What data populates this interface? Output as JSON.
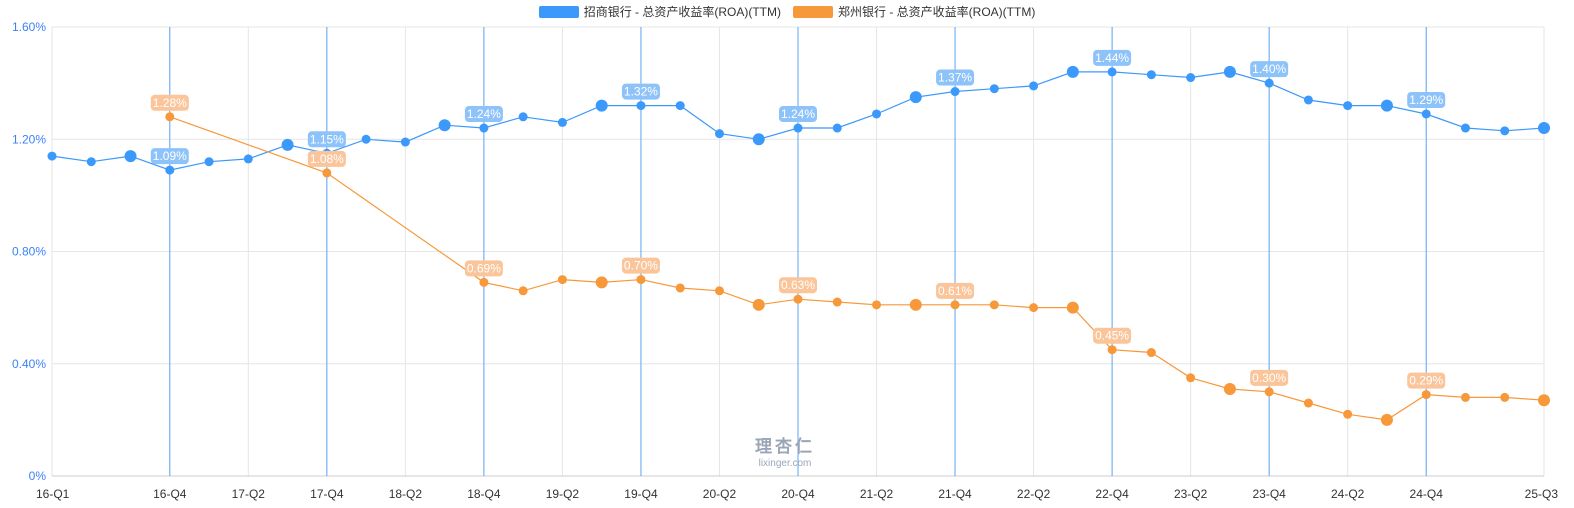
{
  "legend": {
    "series_a": "招商银行 - 总资产收益率(ROA)(TTM)",
    "series_b": "郑州银行 - 总资产收益率(ROA)(TTM)"
  },
  "watermark": {
    "logo": "理杏仁",
    "site": "lixinger.com"
  },
  "colors": {
    "series_a": "#3b99fc",
    "series_b": "#f7983a",
    "axis_text": "#3b82f6",
    "grid": "#e6e6e6"
  },
  "chart_data": {
    "type": "line",
    "title": "",
    "xlabel": "",
    "ylabel": "",
    "ylim": [
      0,
      1.6
    ],
    "y_ticks": [
      0,
      0.4,
      0.8,
      1.2,
      1.6
    ],
    "y_tick_labels": [
      "0%",
      "0.40%",
      "0.80%",
      "1.20%",
      "1.60%"
    ],
    "x_tick_labels": [
      "16-Q1",
      "16-Q4",
      "17-Q2",
      "17-Q4",
      "18-Q2",
      "18-Q4",
      "19-Q2",
      "19-Q4",
      "20-Q2",
      "20-Q4",
      "21-Q2",
      "21-Q4",
      "22-Q2",
      "22-Q4",
      "23-Q2",
      "23-Q4",
      "24-Q2",
      "24-Q4",
      "25-Q3"
    ],
    "x_tick_positions": [
      0,
      3,
      5,
      7,
      9,
      11,
      13,
      15,
      17,
      19,
      21,
      23,
      25,
      27,
      29,
      31,
      33,
      35,
      38
    ],
    "vertical_markers": [
      3,
      7,
      11,
      15,
      19,
      23,
      27,
      31,
      35
    ],
    "series": [
      {
        "name": "招商银行 - 总资产收益率(ROA)(TTM)",
        "x": [
          0,
          1,
          2,
          3,
          4,
          5,
          6,
          7,
          8,
          9,
          10,
          11,
          12,
          13,
          14,
          15,
          16,
          17,
          18,
          19,
          20,
          21,
          22,
          23,
          24,
          25,
          26,
          27,
          28,
          29,
          30,
          31,
          32,
          33,
          34,
          35,
          36,
          37,
          38
        ],
        "values": [
          1.14,
          1.12,
          1.14,
          1.09,
          1.12,
          1.13,
          1.18,
          1.15,
          1.2,
          1.19,
          1.25,
          1.24,
          1.28,
          1.26,
          1.32,
          1.32,
          1.32,
          1.22,
          1.2,
          1.24,
          1.24,
          1.29,
          1.35,
          1.37,
          1.38,
          1.39,
          1.44,
          1.44,
          1.43,
          1.42,
          1.44,
          1.4,
          1.34,
          1.32,
          1.32,
          1.29,
          1.24,
          1.23,
          1.24
        ],
        "large_points": [
          2,
          6,
          10,
          14,
          18,
          22,
          26,
          30,
          34,
          38
        ],
        "labels": [
          {
            "i": 3,
            "text": "1.09%"
          },
          {
            "i": 7,
            "text": "1.15%"
          },
          {
            "i": 11,
            "text": "1.24%"
          },
          {
            "i": 15,
            "text": "1.32%"
          },
          {
            "i": 19,
            "text": "1.24%"
          },
          {
            "i": 23,
            "text": "1.37%"
          },
          {
            "i": 27,
            "text": "1.44%"
          },
          {
            "i": 31,
            "text": "1.40%"
          },
          {
            "i": 35,
            "text": "1.29%"
          }
        ]
      },
      {
        "name": "郑州银行 - 总资产收益率(ROA)(TTM)",
        "x": [
          3,
          7,
          11,
          12,
          13,
          14,
          15,
          16,
          17,
          18,
          19,
          20,
          21,
          22,
          23,
          24,
          25,
          26,
          27,
          28,
          29,
          30,
          31,
          32,
          33,
          34,
          35,
          36,
          37,
          38
        ],
        "values": [
          1.28,
          1.08,
          0.69,
          0.66,
          0.7,
          0.69,
          0.7,
          0.67,
          0.66,
          0.61,
          0.63,
          0.62,
          0.61,
          0.61,
          0.61,
          0.61,
          0.6,
          0.6,
          0.45,
          0.44,
          0.35,
          0.31,
          0.3,
          0.26,
          0.22,
          0.2,
          0.29,
          0.28,
          0.28,
          0.27
        ],
        "large_points": [
          14,
          18,
          22,
          26,
          30,
          34,
          38
        ],
        "labels": [
          {
            "i": 3,
            "text": "1.28%"
          },
          {
            "i": 7,
            "text": "1.08%"
          },
          {
            "i": 11,
            "text": "0.69%"
          },
          {
            "i": 15,
            "text": "0.70%"
          },
          {
            "i": 19,
            "text": "0.63%"
          },
          {
            "i": 23,
            "text": "0.61%"
          },
          {
            "i": 27,
            "text": "0.45%"
          },
          {
            "i": 31,
            "text": "0.30%"
          },
          {
            "i": 35,
            "text": "0.29%"
          }
        ]
      }
    ]
  }
}
